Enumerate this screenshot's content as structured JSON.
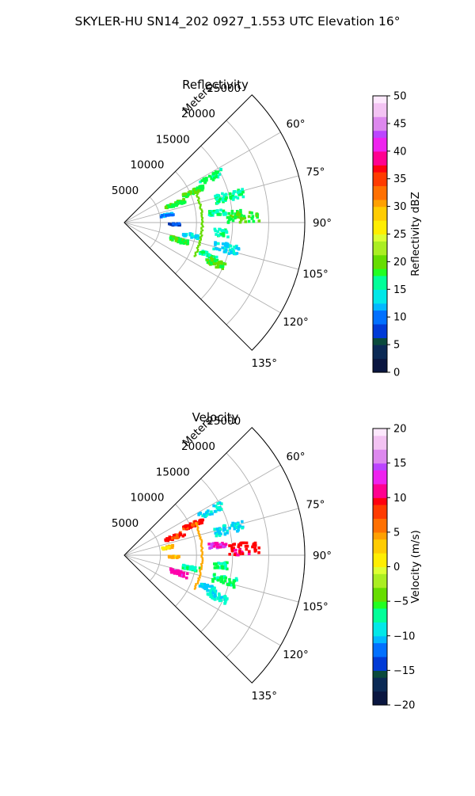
{
  "figure": {
    "suptitle": "SKYLER-HU  SN14_202  0927_1.553 UTC Elevation 16°"
  },
  "chart_data": [
    {
      "type": "polar-sector",
      "title": "Reflectivity",
      "radial_label": "Meters",
      "radial_ticks": [
        5000,
        10000,
        15000,
        20000,
        25000
      ],
      "radial_max": 25000,
      "azimuth_range_deg": [
        45,
        135
      ],
      "azimuth_ticks": [
        "60°",
        "75°",
        "90°",
        "105°",
        "120°",
        "135°"
      ],
      "grid": true,
      "colorbar": {
        "label": "Reflectivity dBZ",
        "range": [
          0,
          50
        ],
        "ticks": [
          "0",
          "5",
          "10",
          "15",
          "20",
          "25",
          "30",
          "35",
          "40",
          "45",
          "50"
        ]
      }
    },
    {
      "type": "polar-sector",
      "title": "Velocity",
      "radial_label": "Meters",
      "radial_ticks": [
        5000,
        10000,
        15000,
        20000,
        25000
      ],
      "radial_max": 25000,
      "azimuth_range_deg": [
        45,
        135
      ],
      "azimuth_ticks": [
        "60°",
        "75°",
        "90°",
        "105°",
        "120°",
        "135°"
      ],
      "grid": true,
      "colorbar": {
        "label": "Velocity (m/s)",
        "range": [
          -20,
          20
        ],
        "ticks": [
          "−20",
          "−15",
          "−10",
          "−5",
          "0",
          "5",
          "10",
          "15",
          "20"
        ]
      }
    }
  ],
  "colors": {
    "radar_scale": [
      "#001a66",
      "#0033aa",
      "#0066ff",
      "#00c8ff",
      "#00ffcc",
      "#00ff44",
      "#66dd00",
      "#bbff33",
      "#ffee00",
      "#ffaa00",
      "#ff6600",
      "#ff0000",
      "#ff00aa",
      "#cc44ff",
      "#ffccff"
    ],
    "grid": "#b0b0b0"
  }
}
